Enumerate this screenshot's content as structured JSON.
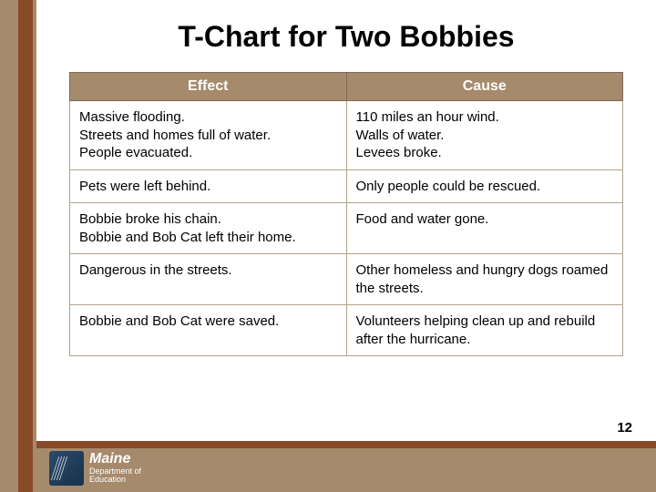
{
  "colors": {
    "band": "#a68a6c",
    "accent": "#8a4a2a",
    "header_text": "#ffffff",
    "cell_border": "#b0a28e",
    "text": "#000000",
    "background": "#ffffff"
  },
  "title": "T-Chart for Two Bobbies",
  "table": {
    "columns": [
      "Effect",
      "Cause"
    ],
    "rows": [
      [
        "Massive flooding.\nStreets and homes full of water.\nPeople evacuated.",
        "110 miles an hour wind.\nWalls of water.\nLevees broke."
      ],
      [
        "Pets were left behind.",
        "Only people could be rescued."
      ],
      [
        "Bobbie broke his chain.\nBobbie and Bob Cat left their home.",
        "Food and water gone."
      ],
      [
        "Dangerous in the streets.",
        "Other homeless and hungry dogs roamed the streets."
      ],
      [
        "Bobbie and Bob Cat were saved.",
        "Volunteers helping clean up and rebuild after the hurricane."
      ]
    ]
  },
  "logo": {
    "line1": "Maine",
    "line2": "Department of",
    "line3": "Education"
  },
  "page_number": "12"
}
